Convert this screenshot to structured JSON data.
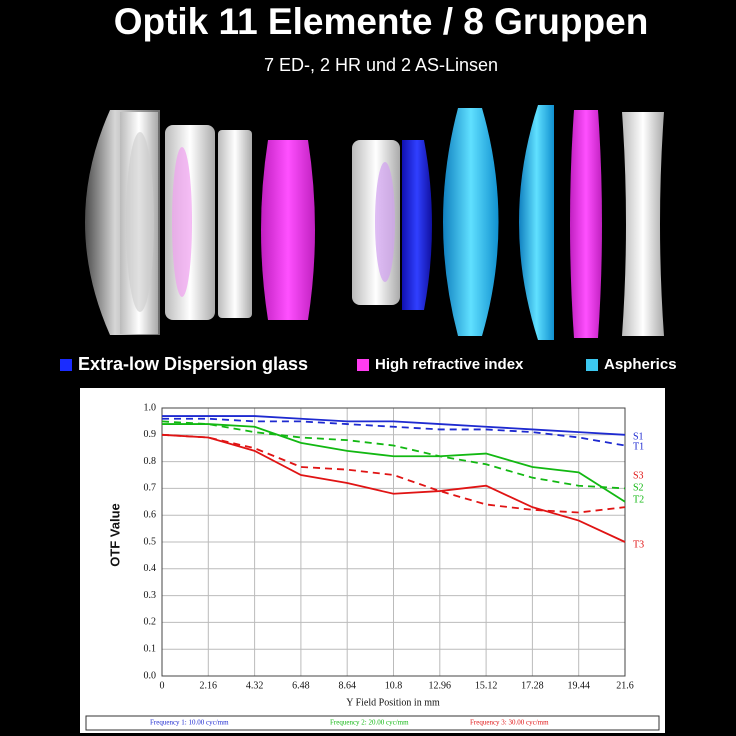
{
  "header": {
    "title": "Optik 11 Elemente / 8 Gruppen",
    "subtitle": "7 ED-, 2 HR und 2 AS-Linsen"
  },
  "lens_legend": [
    {
      "label": "Extra-low Dispersion glass",
      "color": "#1a2cff"
    },
    {
      "label": "High refractive index",
      "color": "#ff3cf0"
    },
    {
      "label": "Aspherics",
      "color": "#3cc8f0"
    }
  ],
  "chart_data": {
    "type": "line",
    "x_label": "Y Field Position in mm",
    "y_label": "OTF Value",
    "x": [
      0,
      2.16,
      4.32,
      6.48,
      8.64,
      10.8,
      12.96,
      15.12,
      17.28,
      19.44,
      21.6
    ],
    "xlim": [
      0,
      21.6
    ],
    "xticks": [
      0,
      2.16,
      4.32,
      6.48,
      8.64,
      10.8,
      12.96,
      15.12,
      17.28,
      19.44,
      21.6
    ],
    "ylim": [
      0,
      1
    ],
    "yticks": [
      {
        "value": 0,
        "label": "0.0"
      },
      0.1,
      0.2,
      0.3,
      0.4,
      0.5,
      0.6,
      0.7,
      0.8,
      0.9,
      {
        "value": 1,
        "label": "1.0"
      }
    ],
    "grid": true,
    "series": [
      {
        "name": "S1",
        "color": "#1e2ad0",
        "style": "solid",
        "values": [
          0.97,
          0.97,
          0.97,
          0.96,
          0.95,
          0.95,
          0.94,
          0.93,
          0.92,
          0.91,
          0.9
        ]
      },
      {
        "name": "T1",
        "color": "#1e2ad0",
        "style": "dashed",
        "values": [
          0.96,
          0.96,
          0.95,
          0.95,
          0.94,
          0.93,
          0.92,
          0.92,
          0.91,
          0.89,
          0.86
        ]
      },
      {
        "name": "S3",
        "color": "#e01414",
        "style": "dashed",
        "values": [
          0.9,
          0.89,
          0.85,
          0.78,
          0.77,
          0.75,
          0.69,
          0.64,
          0.62,
          0.61,
          0.63
        ]
      },
      {
        "name": "S2",
        "color": "#12b812",
        "style": "dashed",
        "values": [
          0.95,
          0.94,
          0.91,
          0.89,
          0.88,
          0.86,
          0.82,
          0.79,
          0.74,
          0.71,
          0.7
        ]
      },
      {
        "name": "T2",
        "color": "#12b812",
        "style": "solid",
        "values": [
          0.94,
          0.94,
          0.93,
          0.87,
          0.84,
          0.82,
          0.82,
          0.83,
          0.78,
          0.76,
          0.65
        ]
      },
      {
        "name": "T3",
        "color": "#e01414",
        "style": "solid",
        "values": [
          0.9,
          0.89,
          0.84,
          0.75,
          0.72,
          0.68,
          0.69,
          0.71,
          0.63,
          0.58,
          0.5
        ]
      }
    ],
    "frequency_legend": [
      {
        "label": "Frequency 1: 10.00 cyc/mm",
        "color": "#1e2ad0"
      },
      {
        "label": "Frequency 2: 20.00 cyc/mm",
        "color": "#12b812"
      },
      {
        "label": "Frequency 3: 30.00 cyc/mm",
        "color": "#e01414"
      }
    ]
  }
}
